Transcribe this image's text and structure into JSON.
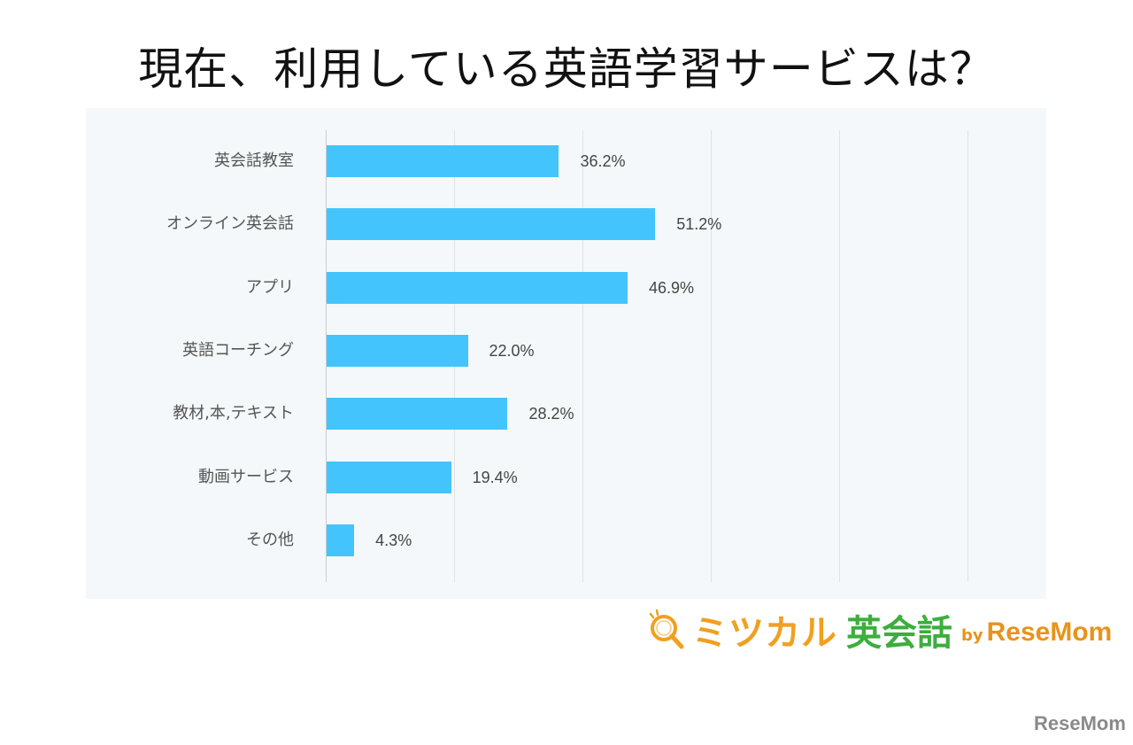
{
  "title": "現在、利用している英語学習サービスは？",
  "chart_data": {
    "type": "bar",
    "orientation": "horizontal",
    "title": "現在、利用している英語学習サービスは？",
    "categories": [
      "英会話教室",
      "オンライン英会話",
      "アプリ",
      "英語コーチング",
      "教材,本,テキスト",
      "動画サービス",
      "その他"
    ],
    "values": [
      36.2,
      51.2,
      46.9,
      22.0,
      28.2,
      19.4,
      4.3
    ],
    "value_labels": [
      "36.2%",
      "51.2%",
      "46.9%",
      "22.0%",
      "28.2%",
      "19.4%",
      "4.3%"
    ],
    "unit": "%",
    "xlabel": "",
    "ylabel": "",
    "xlim": [
      0,
      100
    ],
    "gridlines_x": [
      0,
      20,
      40,
      60,
      80,
      100
    ],
    "grid": true,
    "legend": "none",
    "bar_color": "#44c4fc"
  },
  "logo": {
    "name_part1": "ミツカル",
    "name_part2": "英会話",
    "by": "by",
    "brand": "ReseMom",
    "color_orange": "#f0a020",
    "color_green": "#3cae3c"
  },
  "watermark": "ReseMom"
}
